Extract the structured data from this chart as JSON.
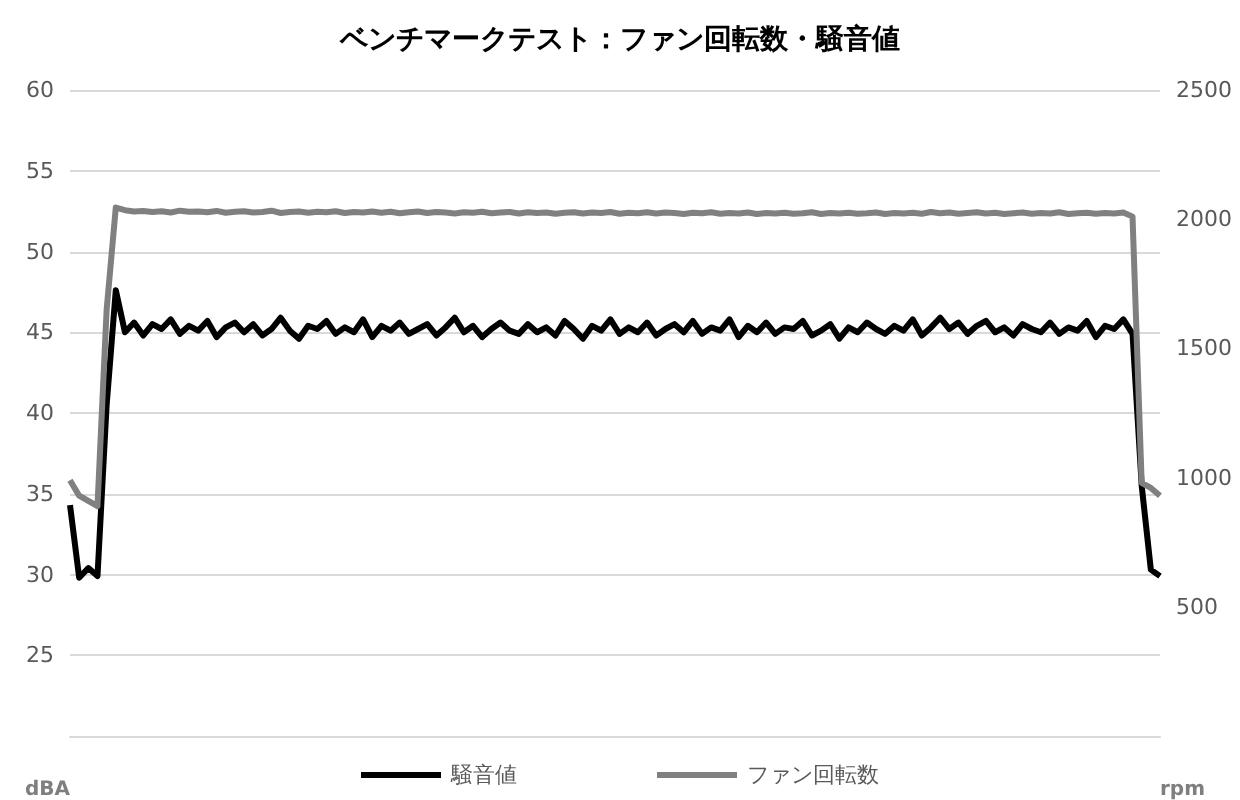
{
  "chart_data": {
    "type": "line",
    "title": "ベンチマークテスト：ファン回転数・騒音値",
    "ylabel": "dBA",
    "y2label": "rpm",
    "categories": [
      null,
      null,
      null,
      null,
      null,
      null,
      null,
      null,
      null,
      null,
      null,
      null,
      null,
      null,
      null,
      null,
      null,
      null,
      null,
      null,
      null,
      null,
      null,
      null,
      null,
      null,
      null,
      null,
      null,
      null,
      null,
      null,
      null,
      null,
      null,
      null,
      null,
      null,
      null,
      null,
      null,
      null,
      null,
      null,
      null,
      null,
      null,
      null,
      null,
      null,
      null,
      null,
      null,
      null,
      null,
      null,
      null,
      null,
      null,
      null,
      null,
      null,
      null,
      null,
      null,
      null,
      null,
      null,
      null,
      null,
      null,
      null,
      null,
      null,
      null,
      null,
      null,
      null,
      null,
      null,
      null,
      null,
      null,
      null,
      null,
      null,
      null,
      null,
      null,
      null,
      null,
      null,
      null,
      null,
      null,
      null,
      null,
      null,
      null,
      null,
      null,
      null,
      null,
      null,
      null,
      null,
      null,
      null,
      null,
      null,
      null,
      null,
      null,
      null,
      null,
      null,
      null,
      null,
      null,
      null
    ],
    "series": [
      {
        "name": "騒音値",
        "color": "#000000",
        "values": [
          34.3,
          29.8,
          30.4,
          29.9,
          40.5,
          47.6,
          45.0,
          45.6,
          44.8,
          45.5,
          45.2,
          45.8,
          44.9,
          45.4,
          45.1,
          45.7,
          44.7,
          45.3,
          45.6,
          45.0,
          45.5,
          44.8,
          45.2,
          45.9,
          45.1,
          44.6,
          45.4,
          45.2,
          45.7,
          44.9,
          45.3,
          45.0,
          45.8,
          44.7,
          45.4,
          45.1,
          45.6,
          44.9,
          45.2,
          45.5,
          44.8,
          45.3,
          45.9,
          45.0,
          45.4,
          44.7,
          45.2,
          45.6,
          45.1,
          44.9,
          45.5,
          45.0,
          45.3,
          44.8,
          45.7,
          45.2,
          44.6,
          45.4,
          45.1,
          45.8,
          44.9,
          45.3,
          45.0,
          45.6,
          44.8,
          45.2,
          45.5,
          45.0,
          45.7,
          44.9,
          45.3,
          45.1,
          45.8,
          44.7,
          45.4,
          45.0,
          45.6,
          44.9,
          45.3,
          45.2,
          45.7,
          44.8,
          45.1,
          45.5,
          44.6,
          45.3,
          45.0,
          45.6,
          45.2,
          44.9,
          45.4,
          45.1,
          45.8,
          44.8,
          45.3,
          45.9,
          45.2,
          45.6,
          44.9,
          45.4,
          45.7,
          45.0,
          45.3,
          44.8,
          45.5,
          45.2,
          45.0,
          45.6,
          44.9,
          45.3,
          45.1,
          45.7,
          44.7,
          45.4,
          45.2,
          45.8,
          44.9,
          35.5,
          30.3,
          29.9
        ]
      },
      {
        "name": "ファン回転数",
        "color": "#808080",
        "axis": "y2",
        "values": [
          990,
          930,
          910,
          890,
          1650,
          2045,
          2035,
          2030,
          2032,
          2028,
          2031,
          2026,
          2033,
          2029,
          2030,
          2027,
          2032,
          2025,
          2029,
          2031,
          2026,
          2028,
          2033,
          2024,
          2028,
          2030,
          2025,
          2029,
          2027,
          2031,
          2024,
          2028,
          2026,
          2030,
          2025,
          2029,
          2023,
          2027,
          2030,
          2024,
          2028,
          2026,
          2022,
          2027,
          2025,
          2029,
          2023,
          2026,
          2028,
          2022,
          2027,
          2024,
          2026,
          2021,
          2025,
          2027,
          2022,
          2026,
          2024,
          2028,
          2021,
          2025,
          2023,
          2027,
          2022,
          2026,
          2024,
          2020,
          2025,
          2023,
          2027,
          2021,
          2024,
          2022,
          2026,
          2020,
          2024,
          2022,
          2025,
          2021,
          2023,
          2027,
          2020,
          2024,
          2022,
          2025,
          2021,
          2023,
          2026,
          2020,
          2024,
          2022,
          2025,
          2021,
          2028,
          2023,
          2026,
          2021,
          2024,
          2027,
          2022,
          2025,
          2020,
          2023,
          2026,
          2021,
          2024,
          2022,
          2027,
          2020,
          2023,
          2025,
          2021,
          2024,
          2022,
          2026,
          2010,
          980,
          960,
          930
        ]
      }
    ],
    "ylim": [
      20,
      60
    ],
    "yticks": [
      25,
      30,
      35,
      40,
      45,
      50,
      55,
      60
    ],
    "y2lim": [
      0,
      2500
    ],
    "y2ticks": [
      500,
      1000,
      1500,
      2000,
      2500
    ],
    "grid": "y",
    "legend": "bottom",
    "line_style": "solid"
  }
}
